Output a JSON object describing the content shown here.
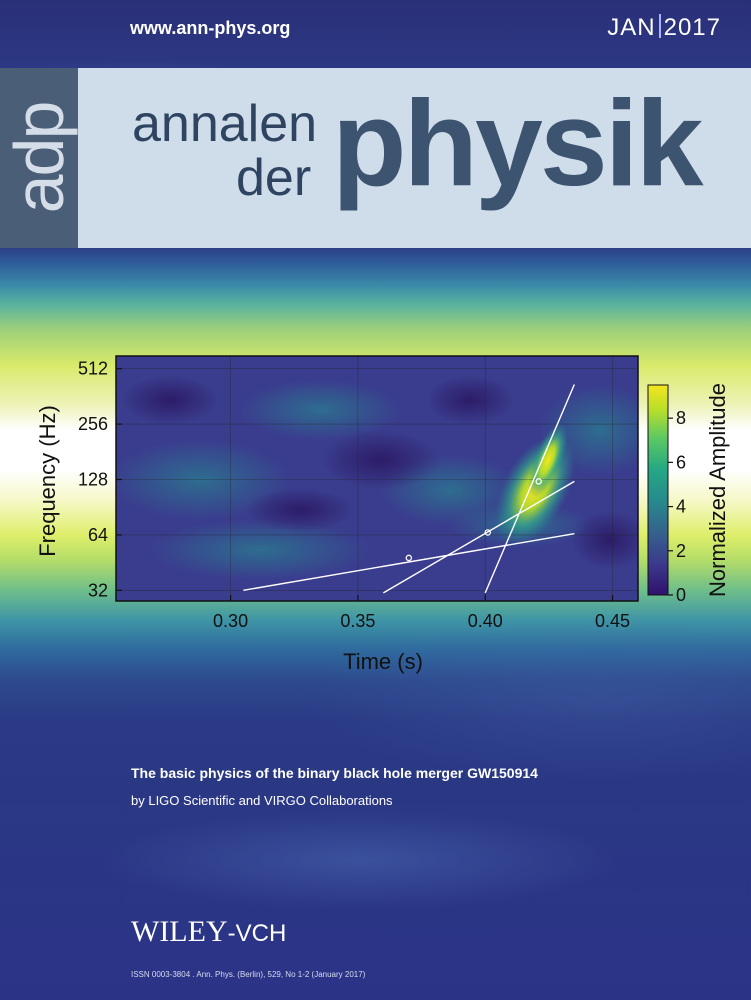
{
  "header": {
    "url": "www.ann-phys.org",
    "month": "JAN",
    "year": "2017"
  },
  "masthead": {
    "abbrev": "adp",
    "line1": "annalen",
    "line2": "der",
    "main": "physik"
  },
  "colors": {
    "masthead_band": "#cfdcea",
    "adp_block": "#4a5e78",
    "title_text": "#3d5470",
    "background_blue": "#2b3386",
    "track_line": "#ffffff"
  },
  "chart_data": {
    "type": "heatmap",
    "xlabel": "Time (s)",
    "ylabel": "Frequency (Hz)",
    "colorbar_label": "Normalized Amplitude",
    "colormap": "viridis",
    "xlim": [
      0.255,
      0.46
    ],
    "xticks": [
      0.3,
      0.35,
      0.4,
      0.45
    ],
    "xtick_labels": [
      "0.30",
      "0.35",
      "0.40",
      "0.45"
    ],
    "yscale": "log2",
    "ylim": [
      28,
      600
    ],
    "yticks": [
      32,
      64,
      128,
      256,
      512
    ],
    "ytick_labels": [
      "32",
      "64",
      "128",
      "256",
      "512"
    ],
    "colorbar_range": [
      0,
      9.5
    ],
    "colorbar_ticks": [
      0,
      2,
      4,
      6,
      8
    ],
    "colorbar_tick_labels": [
      "0",
      "2",
      "4",
      "6",
      "8"
    ],
    "grid": true,
    "lines": [
      {
        "x": [
          0.305,
          0.435
        ],
        "y": [
          32,
          65
        ]
      },
      {
        "x": [
          0.36,
          0.435
        ],
        "y": [
          31,
          125
        ]
      },
      {
        "x": [
          0.4,
          0.435
        ],
        "y": [
          31,
          420
        ]
      }
    ],
    "markers": [
      {
        "x": 0.37,
        "y": 48
      },
      {
        "x": 0.401,
        "y": 66
      },
      {
        "x": 0.421,
        "y": 125
      }
    ]
  },
  "article": {
    "title": "The basic physics of the binary black hole merger GW150914",
    "authors": "by LIGO Scientific and VIRGO Collaborations"
  },
  "publisher": {
    "name": "WILEY",
    "suffix": "-VCH"
  },
  "issn": "ISSN 0003-3804 . Ann. Phys. (Berlin), 529, No 1-2 (January 2017)"
}
